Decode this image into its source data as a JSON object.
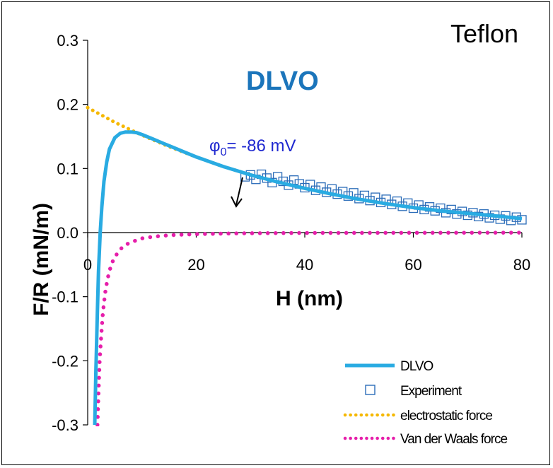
{
  "colors": {
    "dlvo": "#29ABE2",
    "experiment": "#2B6CB8",
    "electrostatic": "#F5B800",
    "vdw": "#E61EAA",
    "subtitle": "#1B75BB",
    "annotation": "#1F28D0"
  },
  "chart_data": {
    "type": "line",
    "title": "Teflon",
    "subtitle": "DLVO",
    "xlabel": "H (nm)",
    "ylabel": "F/R (mN/m)",
    "xlim": [
      0,
      80
    ],
    "ylim": [
      -0.3,
      0.3
    ],
    "x_ticks": [
      "0",
      "20",
      "40",
      "60",
      "80"
    ],
    "y_ticks": [
      "-0.3",
      "-0.2",
      "-0.1",
      "0.0",
      "0.1",
      "0.2",
      "0.3"
    ],
    "annotation": {
      "symbol": "φ",
      "sub": "0",
      "text": "= -86 mV",
      "x": 22,
      "y": 0.13
    },
    "legend_position": "bottom-right",
    "series": [
      {
        "name": "DLVO",
        "style": "solid-line",
        "x": [
          1.3,
          1.5,
          1.8,
          2.0,
          2.3,
          2.6,
          3.0,
          3.5,
          4.0,
          5.0,
          6.0,
          7.0,
          8.0,
          9.0,
          10.0,
          12.0,
          14.0,
          16.0,
          18.0,
          20.0,
          25.0,
          30.0,
          35.0,
          40.0,
          45.0,
          50.0,
          55.0,
          60.0,
          65.0,
          70.0,
          75.0,
          80.0
        ],
        "y": [
          -0.3,
          -0.22,
          -0.12,
          -0.06,
          0.0,
          0.04,
          0.08,
          0.11,
          0.13,
          0.148,
          0.155,
          0.157,
          0.157,
          0.156,
          0.153,
          0.146,
          0.139,
          0.132,
          0.125,
          0.118,
          0.103,
          0.09,
          0.079,
          0.069,
          0.06,
          0.052,
          0.045,
          0.039,
          0.034,
          0.03,
          0.026,
          0.022
        ]
      },
      {
        "name": "Experiment",
        "style": "open-square",
        "x": [
          29,
          30,
          31,
          32,
          33,
          34,
          35,
          36,
          37,
          38,
          39,
          40,
          41,
          42,
          43,
          44,
          45,
          46,
          47,
          48,
          49,
          50,
          51,
          52,
          53,
          54,
          55,
          56,
          57,
          58,
          59,
          60,
          61,
          62,
          63,
          64,
          65,
          66,
          67,
          68,
          69,
          70,
          71,
          72,
          73,
          74,
          75,
          76,
          77,
          78,
          79,
          80
        ],
        "y": [
          0.087,
          0.09,
          0.083,
          0.091,
          0.085,
          0.078,
          0.087,
          0.08,
          0.074,
          0.082,
          0.076,
          0.07,
          0.075,
          0.066,
          0.071,
          0.063,
          0.068,
          0.06,
          0.064,
          0.057,
          0.062,
          0.053,
          0.058,
          0.05,
          0.055,
          0.047,
          0.052,
          0.044,
          0.049,
          0.041,
          0.046,
          0.038,
          0.043,
          0.036,
          0.04,
          0.034,
          0.038,
          0.031,
          0.036,
          0.029,
          0.033,
          0.027,
          0.031,
          0.025,
          0.029,
          0.023,
          0.027,
          0.021,
          0.026,
          0.019,
          0.024,
          0.02
        ]
      },
      {
        "name": "electrostatic force",
        "style": "dotted-line",
        "x": [
          0,
          5,
          10,
          15,
          20,
          25,
          30,
          35,
          40,
          45,
          50,
          55,
          60,
          65,
          70,
          75,
          80
        ],
        "y": [
          0.195,
          0.172,
          0.152,
          0.134,
          0.118,
          0.103,
          0.09,
          0.079,
          0.069,
          0.06,
          0.052,
          0.045,
          0.039,
          0.034,
          0.03,
          0.026,
          0.022
        ]
      },
      {
        "name": "Van der Waals force",
        "style": "dotted-line",
        "x": [
          1.8,
          2.0,
          2.2,
          2.5,
          2.8,
          3.2,
          3.6,
          4.0,
          4.5,
          5.0,
          6.0,
          7.0,
          8.0,
          9.0,
          10.0,
          12.0,
          14.0,
          16.0,
          20.0,
          25.0,
          30.0,
          40.0,
          50.0,
          60.0,
          70.0,
          80.0
        ],
        "y": [
          -0.3,
          -0.25,
          -0.2,
          -0.16,
          -0.125,
          -0.095,
          -0.075,
          -0.06,
          -0.047,
          -0.038,
          -0.026,
          -0.019,
          -0.015,
          -0.012,
          -0.009,
          -0.0065,
          -0.0048,
          -0.0037,
          -0.0024,
          -0.0015,
          -0.001,
          -0.0006,
          -0.0004,
          -0.0003,
          -0.0002,
          -0.0001
        ]
      }
    ]
  }
}
